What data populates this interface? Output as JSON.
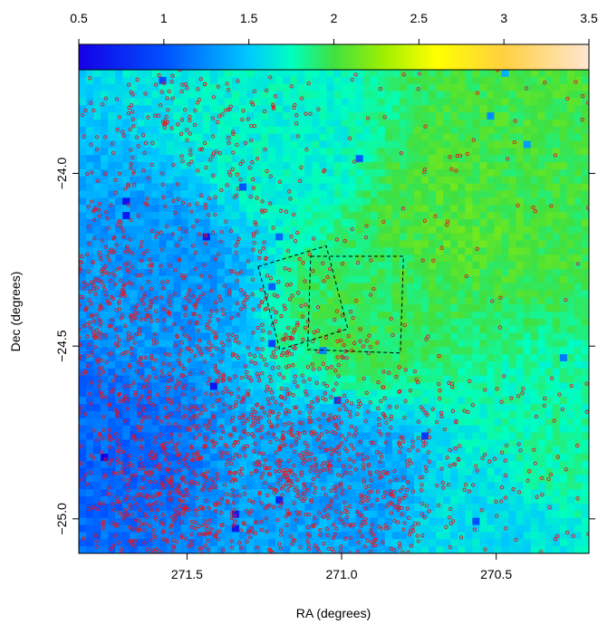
{
  "chart_data": {
    "type": "heatmap",
    "title": "",
    "xlabel": "RA (degrees)",
    "ylabel": "Dec (degrees)",
    "x_axis": {
      "range": [
        271.85,
        270.2
      ],
      "reversed": true,
      "ticks": [
        271.5,
        271.0,
        270.5
      ],
      "tick_labels": [
        "271.5",
        "271.0",
        "270.5"
      ]
    },
    "y_axis": {
      "range": [
        -25.1,
        -23.7
      ],
      "ticks": [
        -24.0,
        -24.5,
        -25.0
      ],
      "tick_labels": [
        "−24.0",
        "−24.5",
        "−25.0"
      ]
    },
    "colorbar": {
      "range": [
        0.5,
        3.5
      ],
      "ticks": [
        0.5,
        1,
        1.5,
        2,
        2.5,
        3,
        3.5
      ],
      "tick_labels": [
        "0.5",
        "1",
        "1.5",
        "2",
        "2.5",
        "3",
        "3.5"
      ],
      "stops": [
        {
          "v": 0.5,
          "color": "#1400e6"
        },
        {
          "v": 1.0,
          "color": "#0050ff"
        },
        {
          "v": 1.5,
          "color": "#00c8ff"
        },
        {
          "v": 1.75,
          "color": "#00ffc0"
        },
        {
          "v": 2.0,
          "color": "#40e040"
        },
        {
          "v": 2.3,
          "color": "#a0f000"
        },
        {
          "v": 2.6,
          "color": "#ffff00"
        },
        {
          "v": 3.0,
          "color": "#ffd040"
        },
        {
          "v": 3.5,
          "color": "#ffe6d0"
        }
      ]
    },
    "heatmap_grid": {
      "nx": 70,
      "ny": 68
    },
    "heatmap_description_of_trend": [
      {
        "ra": 271.8,
        "dec": -24.8,
        "value": 1.1
      },
      {
        "ra": 271.6,
        "dec": -24.3,
        "value": 1.3
      },
      {
        "ra": 271.0,
        "dec": -24.9,
        "value": 1.35
      },
      {
        "ra": 271.2,
        "dec": -23.9,
        "value": 1.7
      },
      {
        "ra": 270.9,
        "dec": -24.4,
        "value": 1.95
      },
      {
        "ra": 270.6,
        "dec": -24.1,
        "value": 2.05
      },
      {
        "ra": 270.4,
        "dec": -24.0,
        "value": 2.0
      },
      {
        "ra": 270.3,
        "dec": -24.8,
        "value": 1.8
      },
      {
        "ra": 270.5,
        "dec": -25.0,
        "value": 1.6
      }
    ],
    "point_marker": {
      "color": "#e8141e",
      "shape": "open-circle",
      "count_estimate": 2600
    },
    "point_density_regions": [
      {
        "ra": 271.75,
        "dec": -24.4,
        "weight": 1.0
      },
      {
        "ra": 271.6,
        "dec": -24.9,
        "weight": 1.2
      },
      {
        "ra": 271.2,
        "dec": -24.85,
        "weight": 1.1
      },
      {
        "ra": 270.9,
        "dec": -24.9,
        "weight": 0.9
      },
      {
        "ra": 271.5,
        "dec": -23.9,
        "weight": 0.5
      },
      {
        "ra": 271.3,
        "dec": -24.45,
        "weight": 0.6
      }
    ],
    "footprints": [
      {
        "style": "dashed",
        "corners": [
          [
            271.27,
            -24.27
          ],
          [
            271.05,
            -24.21
          ],
          [
            270.98,
            -24.45
          ],
          [
            271.2,
            -24.51
          ]
        ]
      },
      {
        "style": "dashed",
        "corners": [
          [
            271.1,
            -24.24
          ],
          [
            270.8,
            -24.24
          ],
          [
            270.81,
            -24.52
          ],
          [
            271.11,
            -24.51
          ]
        ]
      }
    ]
  }
}
